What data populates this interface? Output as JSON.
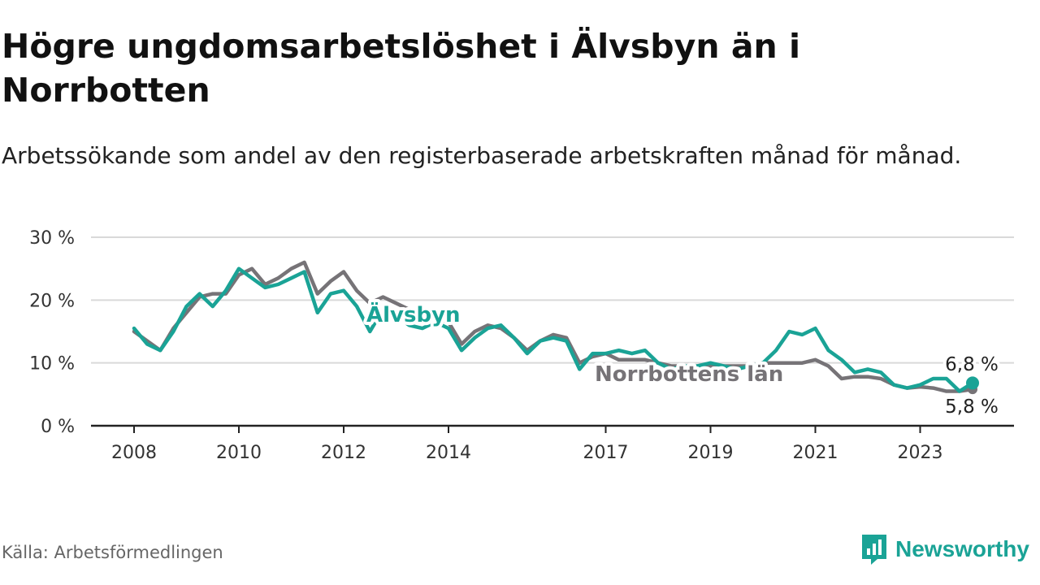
{
  "header": {
    "title": "Högre ungdomsarbetslöshet i Älvsbyn än i Norrbotten",
    "subtitle": "Arbetssökande som andel av den registerbaserade arbetskraften månad för månad."
  },
  "footer": {
    "source": "Källa: Arbetsförmedlingen",
    "brand": "Newsworthy"
  },
  "colors": {
    "alvsbyn": "#1aa396",
    "norrbotten": "#767377",
    "grid": "#d9d9d9",
    "axis": "#222222"
  },
  "chart_data": {
    "type": "line",
    "title": "Högre ungdomsarbetslöshet i Älvsbyn än i Norrbotten",
    "ylim": [
      0,
      30
    ],
    "yticks": [
      0,
      10,
      20,
      30
    ],
    "ytick_labels": [
      "0 %",
      "10 %",
      "20 %",
      "30 %"
    ],
    "xlim": [
      2008.0,
      2024.3
    ],
    "xticks": [
      2008,
      2010,
      2012,
      2014,
      2017,
      2019,
      2021,
      2023
    ],
    "xtick_labels": [
      "2008",
      "2010",
      "2012",
      "2014",
      "2017",
      "2019",
      "2021",
      "2023"
    ],
    "grid": true,
    "series": [
      {
        "name": "Norrbottens län",
        "label": "Norrbottens län",
        "end_label": "5,8 %",
        "color": "#767377",
        "points": [
          [
            2008.0,
            15.0
          ],
          [
            2008.25,
            13.5
          ],
          [
            2008.5,
            12.0
          ],
          [
            2008.75,
            15.5
          ],
          [
            2009.0,
            18.0
          ],
          [
            2009.25,
            20.5
          ],
          [
            2009.5,
            21.0
          ],
          [
            2009.75,
            21.0
          ],
          [
            2010.0,
            24.0
          ],
          [
            2010.25,
            25.0
          ],
          [
            2010.5,
            22.5
          ],
          [
            2010.75,
            23.5
          ],
          [
            2011.0,
            25.0
          ],
          [
            2011.25,
            26.0
          ],
          [
            2011.5,
            21.0
          ],
          [
            2011.75,
            23.0
          ],
          [
            2012.0,
            24.5
          ],
          [
            2012.25,
            21.5
          ],
          [
            2012.5,
            19.5
          ],
          [
            2012.75,
            20.5
          ],
          [
            2013.0,
            19.5
          ],
          [
            2013.25,
            18.5
          ],
          [
            2013.5,
            17.5
          ],
          [
            2013.75,
            17.0
          ],
          [
            2014.0,
            16.5
          ],
          [
            2014.25,
            13.0
          ],
          [
            2014.5,
            15.0
          ],
          [
            2014.75,
            16.0
          ],
          [
            2015.0,
            15.5
          ],
          [
            2015.25,
            14.0
          ],
          [
            2015.5,
            12.0
          ],
          [
            2015.75,
            13.5
          ],
          [
            2016.0,
            14.5
          ],
          [
            2016.25,
            14.0
          ],
          [
            2016.5,
            10.0
          ],
          [
            2016.75,
            11.0
          ],
          [
            2017.0,
            11.5
          ],
          [
            2017.25,
            10.5
          ],
          [
            2017.5,
            10.5
          ],
          [
            2017.75,
            10.5
          ],
          [
            2018.0,
            10.0
          ],
          [
            2018.25,
            9.5
          ],
          [
            2018.5,
            9.5
          ],
          [
            2018.75,
            9.5
          ],
          [
            2019.0,
            9.5
          ],
          [
            2019.25,
            9.5
          ],
          [
            2019.5,
            9.5
          ],
          [
            2019.75,
            9.5
          ],
          [
            2020.0,
            10.0
          ],
          [
            2020.25,
            10.0
          ],
          [
            2020.5,
            10.0
          ],
          [
            2020.75,
            10.0
          ],
          [
            2021.0,
            10.5
          ],
          [
            2021.25,
            9.5
          ],
          [
            2021.5,
            7.5
          ],
          [
            2021.75,
            7.8
          ],
          [
            2022.0,
            7.8
          ],
          [
            2022.25,
            7.5
          ],
          [
            2022.5,
            6.5
          ],
          [
            2022.75,
            6.0
          ],
          [
            2023.0,
            6.2
          ],
          [
            2023.25,
            6.0
          ],
          [
            2023.5,
            5.5
          ],
          [
            2023.75,
            5.5
          ],
          [
            2024.0,
            5.8
          ]
        ]
      },
      {
        "name": "Älvsbyn",
        "label": "Älvsbyn",
        "end_label": "6,8 %",
        "color": "#1aa396",
        "points": [
          [
            2008.0,
            15.5
          ],
          [
            2008.25,
            13.0
          ],
          [
            2008.5,
            12.0
          ],
          [
            2008.75,
            15.0
          ],
          [
            2009.0,
            19.0
          ],
          [
            2009.25,
            21.0
          ],
          [
            2009.5,
            19.0
          ],
          [
            2009.75,
            21.5
          ],
          [
            2010.0,
            25.0
          ],
          [
            2010.25,
            23.5
          ],
          [
            2010.5,
            22.0
          ],
          [
            2010.75,
            22.5
          ],
          [
            2011.0,
            23.5
          ],
          [
            2011.25,
            24.5
          ],
          [
            2011.5,
            18.0
          ],
          [
            2011.75,
            21.0
          ],
          [
            2012.0,
            21.5
          ],
          [
            2012.25,
            19.0
          ],
          [
            2012.5,
            15.0
          ],
          [
            2012.75,
            18.5
          ],
          [
            2013.0,
            17.5
          ],
          [
            2013.25,
            16.0
          ],
          [
            2013.5,
            15.5
          ],
          [
            2013.75,
            16.5
          ],
          [
            2014.0,
            15.5
          ],
          [
            2014.25,
            12.0
          ],
          [
            2014.5,
            14.0
          ],
          [
            2014.75,
            15.5
          ],
          [
            2015.0,
            16.0
          ],
          [
            2015.25,
            14.0
          ],
          [
            2015.5,
            11.5
          ],
          [
            2015.75,
            13.5
          ],
          [
            2016.0,
            14.0
          ],
          [
            2016.25,
            13.5
          ],
          [
            2016.5,
            9.0
          ],
          [
            2016.75,
            11.5
          ],
          [
            2017.0,
            11.5
          ],
          [
            2017.25,
            12.0
          ],
          [
            2017.5,
            11.5
          ],
          [
            2017.75,
            12.0
          ],
          [
            2018.0,
            10.0
          ],
          [
            2018.25,
            9.0
          ],
          [
            2018.5,
            9.5
          ],
          [
            2018.75,
            9.5
          ],
          [
            2019.0,
            10.0
          ],
          [
            2019.25,
            9.5
          ],
          [
            2019.5,
            9.0
          ],
          [
            2019.75,
            9.5
          ],
          [
            2020.0,
            10.0
          ],
          [
            2020.25,
            12.0
          ],
          [
            2020.5,
            15.0
          ],
          [
            2020.75,
            14.5
          ],
          [
            2021.0,
            15.5
          ],
          [
            2021.25,
            12.0
          ],
          [
            2021.5,
            10.5
          ],
          [
            2021.75,
            8.5
          ],
          [
            2022.0,
            9.0
          ],
          [
            2022.25,
            8.5
          ],
          [
            2022.5,
            6.5
          ],
          [
            2022.75,
            6.0
          ],
          [
            2023.0,
            6.5
          ],
          [
            2023.25,
            7.5
          ],
          [
            2023.5,
            7.5
          ],
          [
            2023.75,
            5.5
          ],
          [
            2024.0,
            6.8
          ]
        ]
      }
    ]
  }
}
